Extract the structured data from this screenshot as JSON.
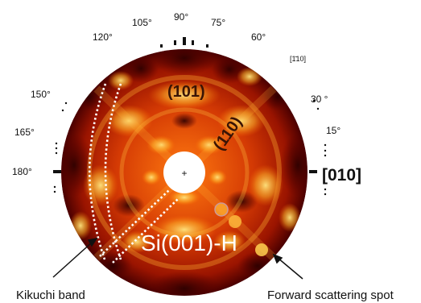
{
  "figure": {
    "colors": {
      "background": "#ffffff",
      "pattern_dark": "#3a0000",
      "pattern_mid": "#c62000",
      "pattern_bright": "#ffd24a",
      "annotation_dotted": "#ffffff",
      "ink": "#111111"
    },
    "angles": {
      "a90": "90°",
      "a75": "75°",
      "a105": "105°",
      "a60": "60°",
      "a120": "120°",
      "a30": "30 °",
      "a150": "150°",
      "a15": "15°",
      "a165": "165°",
      "a180": "180°"
    },
    "index_1_1bar_0": "[1̄10]",
    "direction_010": "[010]",
    "plane_101": "(101)",
    "plane_110": "(110)",
    "sample": "Si(001)-H",
    "kikuchi_band_label": "Kikuchi band",
    "forward_scattering_label": "Forward scattering spot"
  }
}
